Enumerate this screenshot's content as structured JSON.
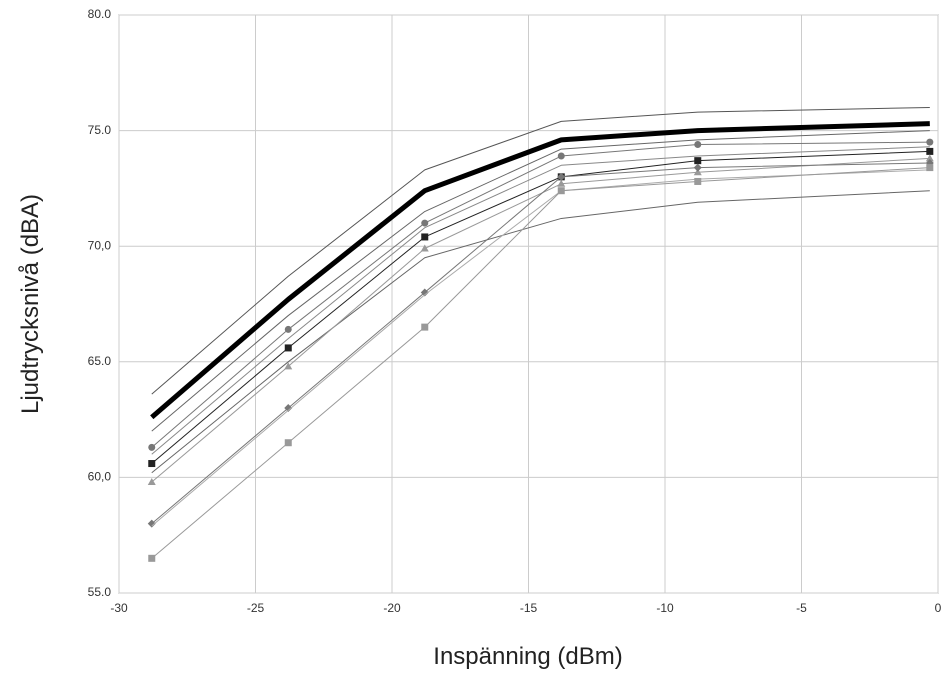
{
  "chart_data": {
    "type": "line",
    "x_label": "Inspänning (dBm)",
    "y_label": "Ljudtrycksnivå (dBA)",
    "x": [
      -28.8,
      -23.8,
      -18.8,
      -13.8,
      -8.8,
      -0.3
    ],
    "xlim": [
      -30,
      0
    ],
    "xticks": [
      -30,
      -25,
      -20,
      -15,
      -10,
      -5,
      0
    ],
    "ylim": [
      55,
      80
    ],
    "yticks": [
      {
        "value": 55,
        "label": "55.0"
      },
      {
        "value": 60,
        "label": "60,0"
      },
      {
        "value": 65,
        "label": "65.0"
      },
      {
        "value": 70,
        "label": "70,0"
      },
      {
        "value": 75,
        "label": "75.0"
      },
      {
        "value": 80,
        "label": "80.0"
      }
    ],
    "grid": true,
    "series": [
      {
        "color": "#555555",
        "line_width": 1,
        "marker": null,
        "values": [
          63.6,
          68.7,
          73.3,
          75.4,
          75.8,
          76.0
        ]
      },
      {
        "color": "#666666",
        "line_width": 1,
        "marker": null,
        "values": [
          62.0,
          67.0,
          71.5,
          74.2,
          74.6,
          75.0
        ]
      },
      {
        "color": "#777777",
        "line_width": 1,
        "marker": "circle",
        "values": [
          61.3,
          66.4,
          71.0,
          73.9,
          74.4,
          74.5
        ]
      },
      {
        "color": "#888888",
        "line_width": 1,
        "marker": null,
        "values": [
          61.0,
          66.0,
          70.8,
          73.5,
          73.9,
          74.3
        ]
      },
      {
        "color": "#222222",
        "line_width": 1,
        "marker": "square",
        "values": [
          60.6,
          65.6,
          70.4,
          73.0,
          73.7,
          74.1
        ]
      },
      {
        "color": "#666666",
        "line_width": 1,
        "marker": null,
        "values": [
          60.2,
          65.0,
          69.5,
          71.2,
          71.9,
          72.4
        ]
      },
      {
        "color": "#999999",
        "line_width": 1,
        "marker": "triangle",
        "values": [
          59.8,
          64.8,
          69.9,
          72.7,
          73.2,
          73.8
        ]
      },
      {
        "color": "#777777",
        "line_width": 1,
        "marker": "diamond",
        "values": [
          58.0,
          63.0,
          68.0,
          73.0,
          73.4,
          73.6
        ]
      },
      {
        "color": "#aaaaaa",
        "line_width": 1,
        "marker": null,
        "values": [
          57.9,
          62.9,
          67.9,
          72.4,
          72.9,
          73.3
        ]
      },
      {
        "color": "#999999",
        "line_width": 1,
        "marker": "square",
        "values": [
          56.5,
          61.5,
          66.5,
          72.4,
          72.8,
          73.4
        ]
      },
      {
        "color": "#000000",
        "line_width": 5,
        "marker": null,
        "values": [
          62.6,
          67.7,
          72.4,
          74.6,
          75.0,
          75.3
        ]
      }
    ]
  }
}
